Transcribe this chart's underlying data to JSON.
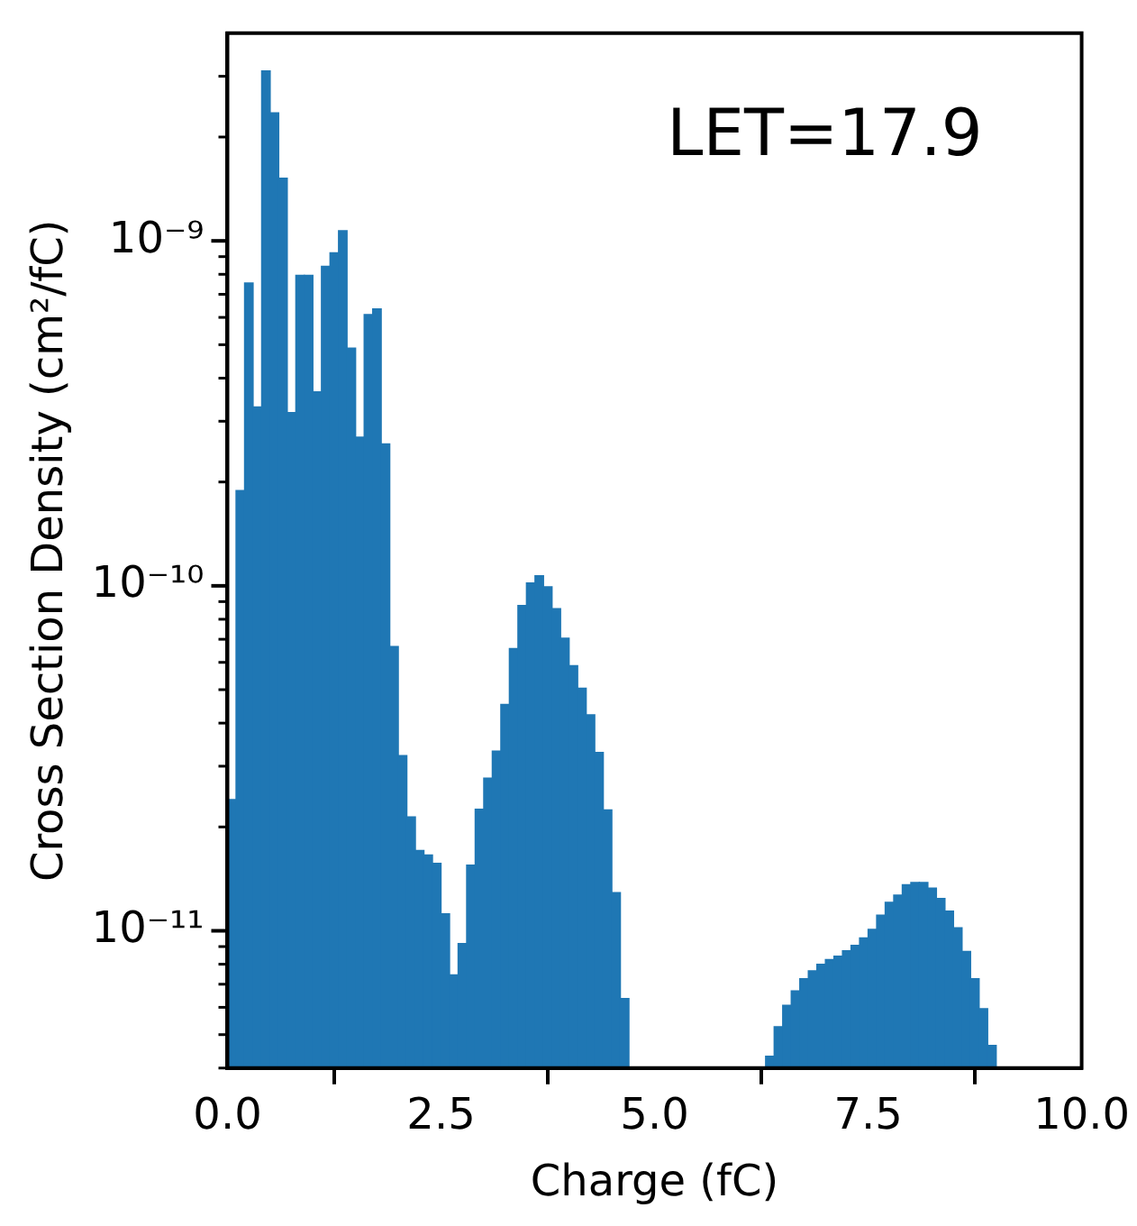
{
  "chart_data": {
    "type": "histogram",
    "xlabel": "Charge (fC)",
    "ylabel": "Cross Section Density (cm²/fC)",
    "annotations": [
      "LET=17.9"
    ],
    "color": "#1f77b4",
    "log": true,
    "grid": false,
    "legend": false,
    "bins": [
      0,
      0.1,
      0.2,
      0.3,
      0.4,
      0.5,
      0.6,
      0.7,
      0.8,
      0.9,
      1,
      1.1,
      1.2,
      1.3,
      1.4,
      1.5,
      1.6,
      1.7,
      1.8,
      1.9,
      2,
      2.1,
      2.2,
      2.3,
      2.4,
      2.5,
      2.6,
      2.7,
      2.8,
      2.9,
      3,
      3.1,
      3.2,
      3.3,
      3.4,
      3.5,
      3.6,
      3.7,
      3.8,
      3.9,
      4,
      4.1,
      4.2,
      4.3,
      4.4,
      4.5,
      4.6,
      4.7,
      4.8,
      4.9,
      5,
      5.1,
      5.2,
      5.3,
      5.4,
      5.5,
      5.6,
      5.7,
      5.8,
      5.9,
      6,
      6.1,
      6.2,
      6.3,
      6.4,
      6.5,
      6.6,
      6.7,
      6.8,
      6.9,
      7,
      7.1,
      7.2,
      7.3,
      7.4,
      7.5,
      7.6,
      7.7,
      7.8,
      7.9,
      8,
      8.1,
      8.2,
      8.3,
      8.4,
      8.5,
      8.6,
      8.7,
      8.8,
      8.9,
      9,
      9.1,
      9.2,
      9.3,
      9.4,
      9.5,
      9.6,
      9.7,
      9.8,
      9.9,
      10
    ],
    "values": [
      2.4e-11,
      1.89e-10,
      7.55e-10,
      3.3e-10,
      3.11e-09,
      2.35e-09,
      1.52e-09,
      3.18e-10,
      7.95e-10,
      7.95e-10,
      3.65e-10,
      8.44e-10,
      9.24e-10,
      1.07e-09,
      4.89e-10,
      2.7e-10,
      6.12e-10,
      6.35e-10,
      2.58e-10,
      6.67e-11,
      3.22e-11,
      2.14e-11,
      1.71e-11,
      1.66e-11,
      1.57e-11,
      1.12e-11,
      7.45e-12,
      9.19e-12,
      1.55e-11,
      2.25e-11,
      2.77e-11,
      3.32e-11,
      4.53e-11,
      6.58e-11,
      8.77e-11,
      1.02e-10,
      1.07e-10,
      9.94e-11,
      8.59e-11,
      7.05e-11,
      5.87e-11,
      5.05e-11,
      4.23e-11,
      3.29e-11,
      2.24e-11,
      1.29e-11,
      6.36e-12,
      null,
      null,
      null,
      null,
      null,
      null,
      null,
      null,
      null,
      null,
      null,
      null,
      null,
      null,
      null,
      null,
      4.33e-12,
      5.27e-12,
      6.08e-12,
      6.7e-12,
      7.26e-12,
      7.66e-12,
      8e-12,
      8.26e-12,
      8.44e-12,
      8.75e-12,
      9.08e-12,
      9.53e-12,
      1.01e-11,
      1.11e-11,
      1.21e-11,
      1.27e-11,
      1.36e-11,
      1.38e-11,
      1.38e-11,
      1.33e-11,
      1.24e-11,
      1.14e-11,
      1.02e-11,
      8.71e-12,
      7.26e-12,
      5.95e-12,
      4.65e-12,
      null,
      null,
      null,
      null,
      null,
      null,
      null,
      null,
      null,
      null
    ],
    "xlim": [
      0,
      10
    ],
    "xticks": [
      {
        "value": 0,
        "label": "0.0"
      },
      2.5,
      {
        "value": 5,
        "label": "5.0"
      },
      7.5,
      {
        "value": 10,
        "label": "10.0"
      }
    ],
    "ylim": [
      4e-12,
      4e-09
    ],
    "yticks": [
      {
        "value": 4e-12,
        "label": null
      },
      {
        "value": 5e-12,
        "label": null
      },
      {
        "value": 6e-12,
        "label": null
      },
      {
        "value": 7e-12,
        "label": null
      },
      {
        "value": 8e-12,
        "label": null
      },
      {
        "value": 9e-12,
        "label": null
      },
      {
        "value": 1e-11,
        "label": "10⁻¹¹"
      },
      {
        "value": 2e-11,
        "label": null
      },
      {
        "value": 3e-11,
        "label": null
      },
      {
        "value": 4e-11,
        "label": null
      },
      {
        "value": 5e-11,
        "label": null
      },
      {
        "value": 6e-11,
        "label": null
      },
      {
        "value": 7e-11,
        "label": null
      },
      {
        "value": 8e-11,
        "label": null
      },
      {
        "value": 9e-11,
        "label": null
      },
      {
        "value": 1e-10,
        "label": "10⁻¹⁰"
      },
      {
        "value": 2e-10,
        "label": null
      },
      {
        "value": 3e-10,
        "label": null
      },
      {
        "value": 4e-10,
        "label": null
      },
      {
        "value": 5e-10,
        "label": null
      },
      {
        "value": 6e-10,
        "label": null
      },
      {
        "value": 7e-10,
        "label": null
      },
      {
        "value": 8e-10,
        "label": null
      },
      {
        "value": 9e-10,
        "label": null
      },
      {
        "value": 1e-09,
        "label": "10⁻⁹"
      },
      {
        "value": 2e-09,
        "label": null
      },
      {
        "value": 3e-09,
        "label": null
      }
    ]
  }
}
